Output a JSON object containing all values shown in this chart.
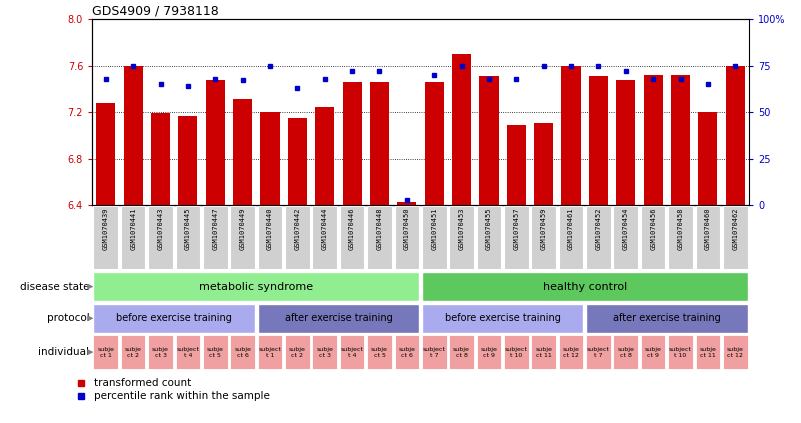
{
  "title": "GDS4909 / 7938118",
  "samples": [
    "GSM1070439",
    "GSM1070441",
    "GSM1070443",
    "GSM1070445",
    "GSM1070447",
    "GSM1070449",
    "GSM1070440",
    "GSM1070442",
    "GSM1070444",
    "GSM1070446",
    "GSM1070448",
    "GSM1070450",
    "GSM1070451",
    "GSM1070453",
    "GSM1070455",
    "GSM1070457",
    "GSM1070459",
    "GSM1070461",
    "GSM1070452",
    "GSM1070454",
    "GSM1070456",
    "GSM1070458",
    "GSM1070460",
    "GSM1070462"
  ],
  "bar_values": [
    7.28,
    7.6,
    7.19,
    7.17,
    7.48,
    7.31,
    7.2,
    7.15,
    7.24,
    7.46,
    7.46,
    6.43,
    7.46,
    7.7,
    7.51,
    7.09,
    7.11,
    7.6,
    7.51,
    7.48,
    7.52,
    7.52,
    7.2,
    7.6
  ],
  "dot_values": [
    68,
    75,
    65,
    64,
    68,
    67,
    75,
    63,
    68,
    72,
    72,
    3,
    70,
    75,
    68,
    68,
    75,
    75,
    75,
    72,
    68,
    68,
    65,
    75
  ],
  "ylim": [
    6.4,
    8.0
  ],
  "yticks": [
    6.4,
    6.8,
    7.2,
    7.6,
    8.0
  ],
  "right_ylim": [
    0,
    100
  ],
  "right_yticks": [
    0,
    25,
    50,
    75,
    100
  ],
  "right_yticklabels": [
    "0",
    "25",
    "50",
    "75",
    "100%"
  ],
  "bar_color": "#cc0000",
  "dot_color": "#0000cc",
  "disease_state_groups": [
    {
      "label": "metabolic syndrome",
      "start": 0,
      "end": 11,
      "color": "#90EE90"
    },
    {
      "label": "healthy control",
      "start": 12,
      "end": 23,
      "color": "#5DC85D"
    }
  ],
  "protocol_groups": [
    {
      "label": "before exercise training",
      "start": 0,
      "end": 5,
      "color": "#AAAAEE"
    },
    {
      "label": "after exercise training",
      "start": 6,
      "end": 11,
      "color": "#7777BB"
    },
    {
      "label": "before exercise training",
      "start": 12,
      "end": 17,
      "color": "#AAAAEE"
    },
    {
      "label": "after exercise training",
      "start": 18,
      "end": 23,
      "color": "#7777BB"
    }
  ],
  "individual_labels": [
    "subje\nct 1",
    "subje\nct 2",
    "subje\nct 3",
    "subject\nt 4",
    "subje\nct 5",
    "subje\nct 6",
    "subject\nt 1",
    "subje\nct 2",
    "subje\nct 3",
    "subject\nt 4",
    "subje\nct 5",
    "subje\nct 6",
    "subject\nt 7",
    "subje\nct 8",
    "subje\nct 9",
    "subject\nt 10",
    "subje\nct 11",
    "subje\nct 12",
    "subject\nt 7",
    "subje\nct 8",
    "subje\nct 9",
    "subject\nt 10",
    "subje\nct 11",
    "subje\nct 12"
  ],
  "individual_color": "#F0A0A0",
  "row_labels": [
    "disease state",
    "protocol",
    "individual"
  ],
  "legend_items": [
    {
      "color": "#cc0000",
      "label": "transformed count"
    },
    {
      "color": "#0000cc",
      "label": "percentile rank within the sample"
    }
  ],
  "xtick_bg": "#D0D0D0"
}
